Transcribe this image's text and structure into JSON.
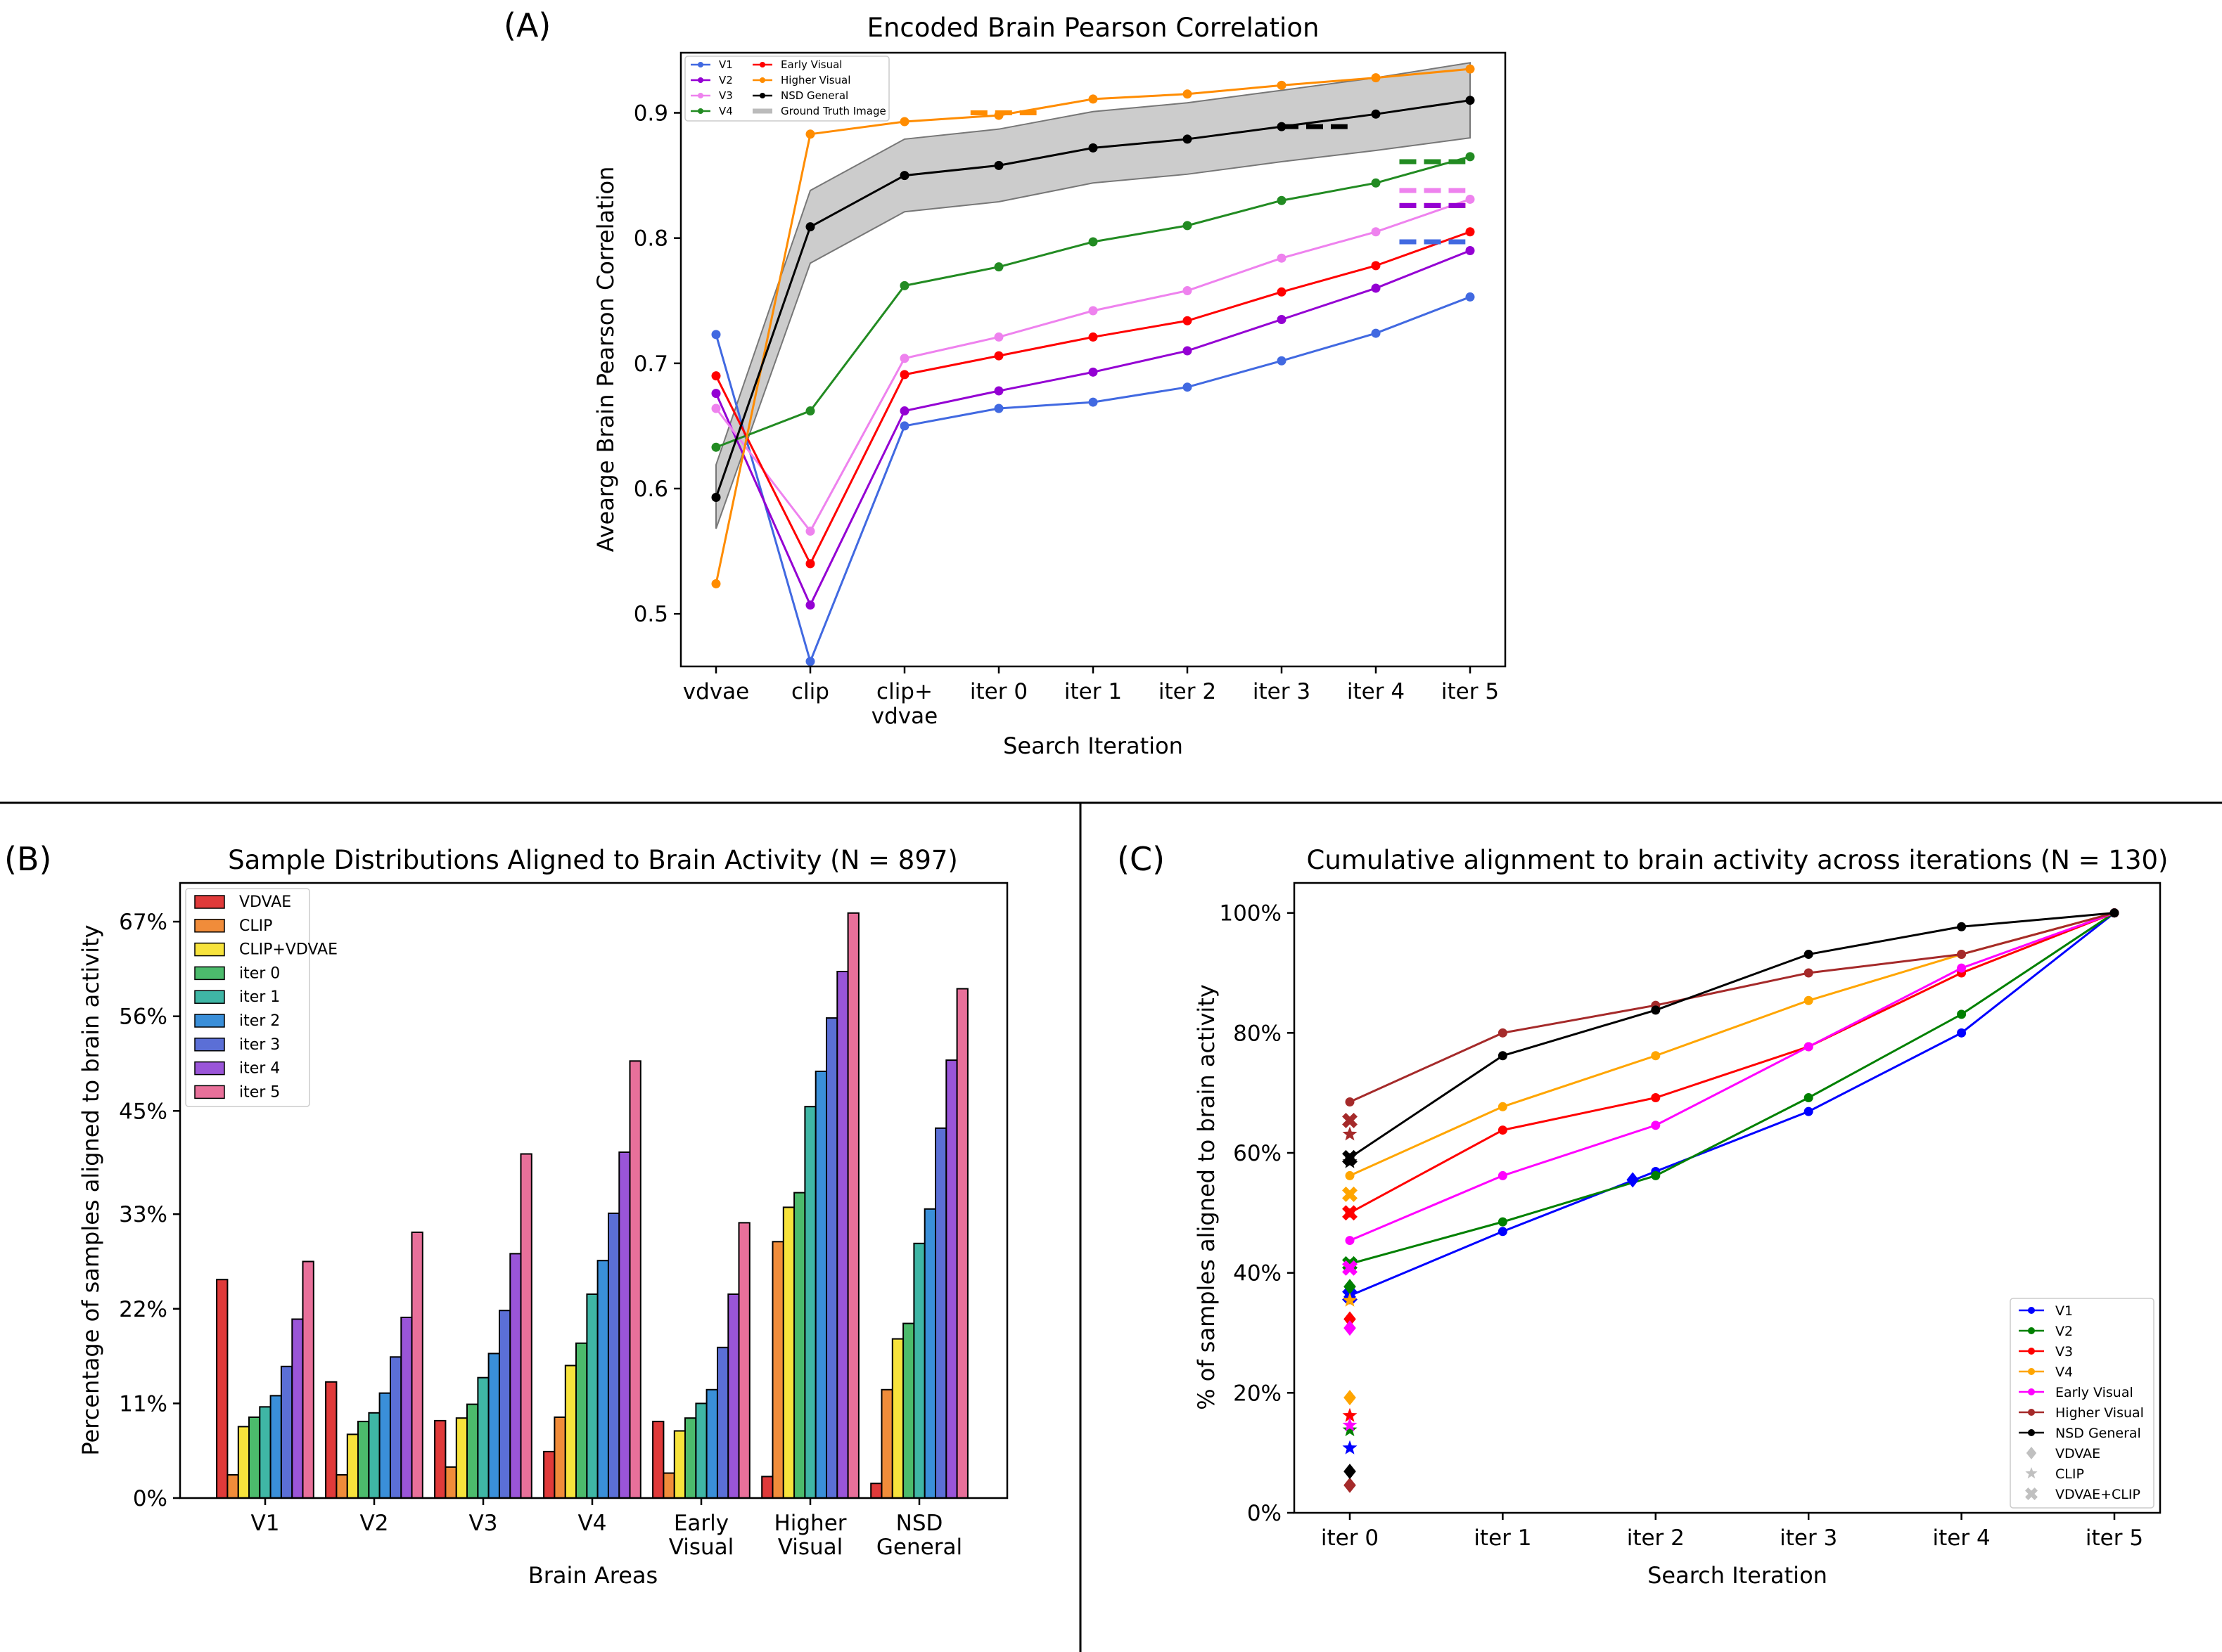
{
  "figure": {
    "panel_labels": [
      "(A)",
      "(B)",
      "(C)"
    ]
  },
  "chart_data": [
    {
      "panel": "(A)",
      "type": "line",
      "title": "Encoded Brain Pearson Correlation",
      "xlabel": "Search Iteration",
      "ylabel": "Avearge Brain Pearson Correlation",
      "categories": [
        "vdvae",
        "clip",
        "clip+\nvdvae",
        "iter 0",
        "iter 1",
        "iter 2",
        "iter 3",
        "iter 4",
        "iter 5"
      ],
      "category_lines": [
        [
          "vdvae"
        ],
        [
          "clip"
        ],
        [
          "clip+",
          "vdvae"
        ],
        [
          "iter 0"
        ],
        [
          "iter 1"
        ],
        [
          "iter 2"
        ],
        [
          "iter 3"
        ],
        [
          "iter 4"
        ],
        [
          "iter 5"
        ]
      ],
      "ylim": [
        0.458,
        0.948
      ],
      "yticks": [
        0.5,
        0.6,
        0.7,
        0.8,
        0.9
      ],
      "ytick_labels": [
        "0.5",
        "0.6",
        "0.7",
        "0.8",
        "0.9"
      ],
      "legend_loc": "upper-left",
      "series": [
        {
          "name": "V1",
          "color": "#4169e1",
          "values": [
            0.723,
            0.462,
            0.65,
            0.664,
            0.669,
            0.681,
            0.702,
            0.724,
            0.753
          ]
        },
        {
          "name": "V2",
          "color": "#9400d3",
          "values": [
            0.676,
            0.507,
            0.662,
            0.678,
            0.693,
            0.71,
            0.735,
            0.76,
            0.79
          ]
        },
        {
          "name": "V3",
          "color": "#ee82ee",
          "values": [
            0.664,
            0.566,
            0.704,
            0.721,
            0.742,
            0.758,
            0.784,
            0.805,
            0.831
          ]
        },
        {
          "name": "V4",
          "color": "#228b22",
          "values": [
            0.633,
            0.662,
            0.762,
            0.777,
            0.797,
            0.81,
            0.83,
            0.844,
            0.865
          ]
        },
        {
          "name": "Early Visual",
          "color": "#ff0000",
          "values": [
            0.69,
            0.54,
            0.691,
            0.706,
            0.721,
            0.734,
            0.757,
            0.778,
            0.805
          ]
        },
        {
          "name": "Higher Visual",
          "color": "#ff8c00",
          "values": [
            0.524,
            0.883,
            0.893,
            0.898,
            0.911,
            0.915,
            0.922,
            0.928,
            0.935
          ]
        },
        {
          "name": "NSD General",
          "color": "#000000",
          "values": [
            0.593,
            0.809,
            0.85,
            0.858,
            0.872,
            0.879,
            0.889,
            0.899,
            0.91
          ]
        }
      ],
      "band": {
        "name": "Ground Truth Image",
        "color": "#bbbbbb",
        "lower": [
          0.568,
          0.78,
          0.821,
          0.829,
          0.844,
          0.851,
          0.861,
          0.87,
          0.88
        ],
        "upper": [
          0.619,
          0.838,
          0.879,
          0.887,
          0.901,
          0.908,
          0.918,
          0.928,
          0.94
        ]
      },
      "ground_truth_lines": [
        {
          "name": "Higher Visual",
          "color": "#ff8c00",
          "value": 0.9,
          "x_range": [
            2.7,
            3.4
          ]
        },
        {
          "name": "NSD General",
          "color": "#000000",
          "value": 0.889,
          "x_range": [
            6.0,
            6.7
          ]
        },
        {
          "name": "V4",
          "color": "#228b22",
          "value": 0.861,
          "x_range": [
            7.25,
            7.95
          ]
        },
        {
          "name": "V3",
          "color": "#ee82ee",
          "value": 0.838,
          "x_range": [
            7.25,
            7.95
          ]
        },
        {
          "name": "Early Visual",
          "color": "#ff0000",
          "value": 0.826,
          "x_range": [
            7.25,
            7.95
          ]
        },
        {
          "name": "V2",
          "color": "#9400d3",
          "value": 0.826,
          "x_range": [
            7.25,
            7.95
          ]
        },
        {
          "name": "V1",
          "color": "#4169e1",
          "value": 0.797,
          "x_range": [
            7.25,
            7.95
          ]
        }
      ]
    },
    {
      "panel": "(B)",
      "type": "bar",
      "title": "Sample Distributions Aligned to Brain Activity (N = 897)",
      "xlabel": "Brain Areas",
      "ylabel": "Percentage of samples aligned to brain activity",
      "categories": [
        "V1",
        "V2",
        "V3",
        "V4",
        "Early\nVisual",
        "Higher\nVisual",
        "NSD\nGeneral"
      ],
      "category_lines": [
        [
          "V1"
        ],
        [
          "V2"
        ],
        [
          "V3"
        ],
        [
          "V4"
        ],
        [
          "Early",
          "Visual"
        ],
        [
          "Higher",
          "Visual"
        ],
        [
          "NSD",
          "General"
        ]
      ],
      "ylim": [
        0,
        71.5
      ],
      "yticks": [
        0,
        11,
        22,
        33,
        45,
        56,
        67
      ],
      "ytick_labels": [
        "0%",
        "11%",
        "22%",
        "33%",
        "45%",
        "56%",
        "67%"
      ],
      "legend_loc": "upper-left",
      "series": [
        {
          "name": "VDVAE",
          "color": "#e03a3a",
          "values": [
            25.4,
            13.5,
            9.0,
            5.4,
            8.9,
            2.5,
            1.7
          ]
        },
        {
          "name": "CLIP",
          "color": "#f08c3a",
          "values": [
            2.7,
            2.7,
            3.6,
            9.4,
            2.9,
            29.8,
            12.6
          ]
        },
        {
          "name": "CLIP+VDVAE",
          "color": "#f7e33c",
          "values": [
            8.3,
            7.4,
            9.3,
            15.4,
            7.8,
            33.8,
            18.5
          ]
        },
        {
          "name": "iter 0",
          "color": "#4cbb6c",
          "values": [
            9.4,
            8.9,
            10.9,
            18.0,
            9.3,
            35.5,
            20.3
          ]
        },
        {
          "name": "iter 1",
          "color": "#3fb6a5",
          "values": [
            10.6,
            9.9,
            14.0,
            23.7,
            11.0,
            45.5,
            29.6
          ]
        },
        {
          "name": "iter 2",
          "color": "#3a8fd9",
          "values": [
            11.9,
            12.2,
            16.8,
            27.6,
            12.6,
            49.6,
            33.6
          ]
        },
        {
          "name": "iter 3",
          "color": "#5b6fd6",
          "values": [
            15.3,
            16.4,
            21.8,
            33.1,
            17.5,
            55.8,
            43.0
          ]
        },
        {
          "name": "iter 4",
          "color": "#9a55d8",
          "values": [
            20.8,
            21.0,
            28.4,
            40.2,
            23.7,
            61.2,
            50.9
          ]
        },
        {
          "name": "iter 5",
          "color": "#e8709a",
          "values": [
            27.5,
            30.9,
            40.0,
            50.8,
            32.0,
            68.0,
            59.2
          ]
        }
      ]
    },
    {
      "panel": "(C)",
      "type": "line",
      "title": "Cumulative alignment to brain activity across iterations (N = 130)",
      "xlabel": "Search Iteration",
      "ylabel": "% of samples aligned to brain activity",
      "categories": [
        "iter 0",
        "iter 1",
        "iter 2",
        "iter 3",
        "iter 4",
        "iter 5"
      ],
      "ylim": [
        0,
        105
      ],
      "yticks": [
        0,
        20,
        40,
        60,
        80,
        100
      ],
      "ytick_labels": [
        "0%",
        "20%",
        "40%",
        "60%",
        "80%",
        "100%"
      ],
      "legend_loc": "lower-right",
      "series": [
        {
          "name": "V1",
          "color": "#0000ff",
          "values": [
            36.2,
            46.9,
            56.9,
            66.9,
            80.0,
            100.0
          ]
        },
        {
          "name": "V2",
          "color": "#008000",
          "values": [
            41.5,
            48.5,
            56.2,
            69.2,
            83.1,
            100.0
          ]
        },
        {
          "name": "V3",
          "color": "#ff0000",
          "values": [
            50.0,
            63.8,
            69.2,
            77.7,
            90.0,
            100.0
          ]
        },
        {
          "name": "V4",
          "color": "#ffa500",
          "values": [
            56.2,
            67.7,
            76.2,
            85.4,
            93.1,
            100.0
          ]
        },
        {
          "name": "Early Visual",
          "color": "#ff00ff",
          "values": [
            45.4,
            56.2,
            64.6,
            77.7,
            90.8,
            100.0
          ]
        },
        {
          "name": "Higher Visual",
          "color": "#a52a2a",
          "values": [
            68.5,
            80.0,
            84.6,
            90.0,
            93.1,
            100.0
          ]
        },
        {
          "name": "NSD General",
          "color": "#000000",
          "values": [
            59.2,
            76.2,
            83.8,
            93.1,
            97.7,
            100.0
          ]
        }
      ],
      "baseline_markers": {
        "x_category": "iter 0",
        "legend": [
          {
            "name": "VDVAE",
            "shape": "diamond",
            "color": "#c0c0c0"
          },
          {
            "name": "CLIP",
            "shape": "star",
            "color": "#c0c0c0"
          },
          {
            "name": "VDVAE+CLIP",
            "shape": "x",
            "color": "#c0c0c0"
          }
        ],
        "points": [
          {
            "series": "V1",
            "VDVAE": 36.0,
            "CLIP": 10.8,
            "VDVAE+CLIP": 36.2
          },
          {
            "series": "V2",
            "VDVAE": 37.7,
            "CLIP": 13.8,
            "VDVAE+CLIP": 41.5
          },
          {
            "series": "V3",
            "VDVAE": 32.3,
            "CLIP": 16.2,
            "VDVAE+CLIP": 50.0
          },
          {
            "series": "V4",
            "VDVAE": 19.2,
            "CLIP": 35.4,
            "VDVAE+CLIP": 53.1
          },
          {
            "series": "Early Visual",
            "VDVAE": 30.8,
            "CLIP": 14.6,
            "VDVAE+CLIP": 40.8
          },
          {
            "series": "Higher Visual",
            "VDVAE": 4.6,
            "CLIP": 63.1,
            "VDVAE+CLIP": 65.4
          },
          {
            "series": "NSD General",
            "VDVAE": 6.9,
            "CLIP": 58.5,
            "VDVAE+CLIP": 59.2
          }
        ],
        "extra_point": {
          "series": "V1",
          "shape": "diamond",
          "category_offset": 1.85,
          "value": 55.5
        }
      }
    }
  ]
}
